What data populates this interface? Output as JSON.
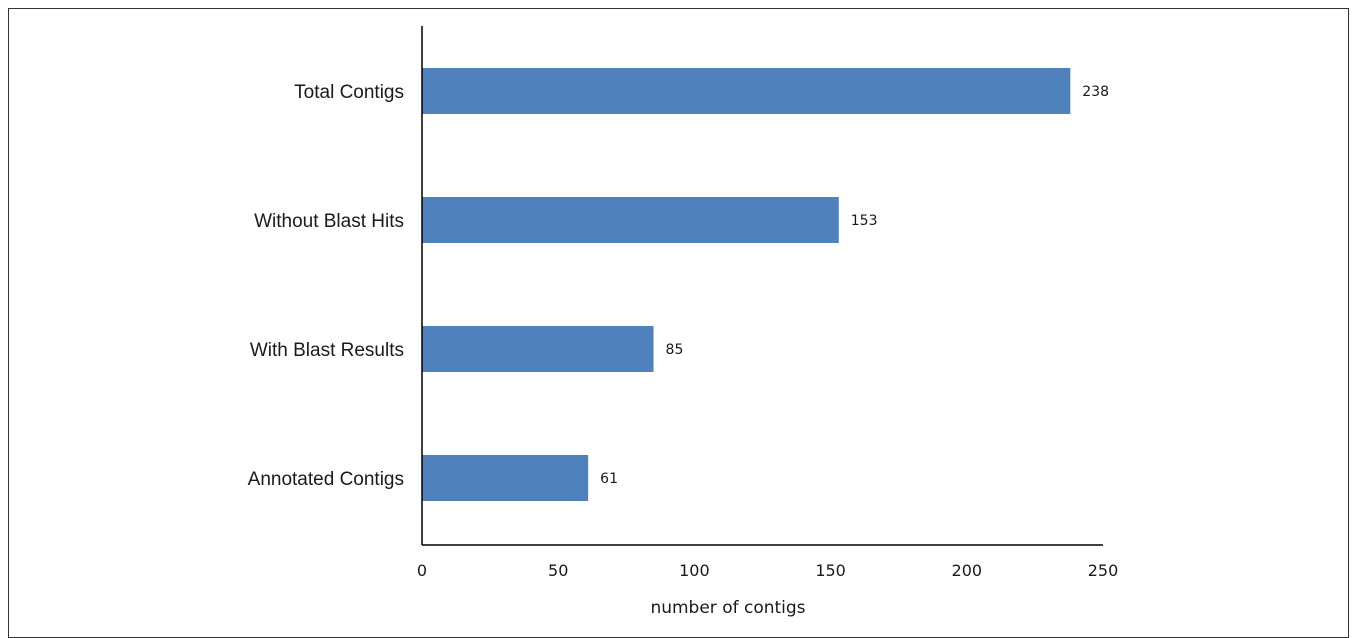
{
  "chart_data": {
    "type": "bar",
    "orientation": "horizontal",
    "categories": [
      "Total Contigs",
      "Without Blast Hits",
      "With Blast Results",
      "Annotated Contigs"
    ],
    "values": [
      238,
      153,
      85,
      61
    ],
    "data_labels": [
      "238",
      "153",
      "85",
      "61"
    ],
    "title": "",
    "xlabel": "number of contigs",
    "ylabel": "",
    "xlim": [
      0,
      250
    ],
    "xticks": [
      0,
      50,
      100,
      150,
      200,
      250
    ],
    "grid": false,
    "legend": "none",
    "bar_color": "#4f81bd"
  }
}
